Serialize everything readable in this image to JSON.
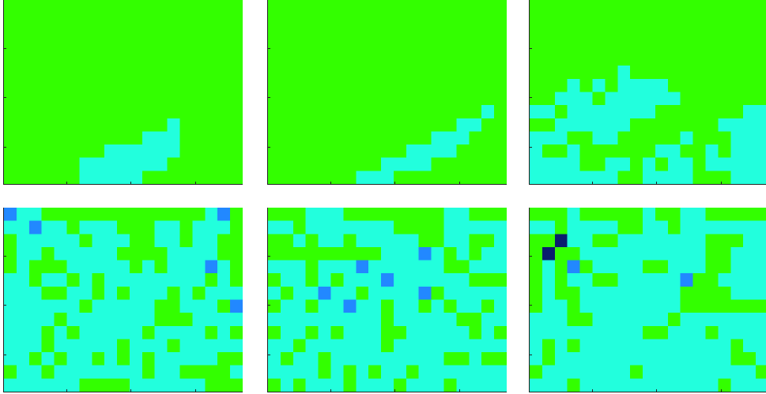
{
  "colors": {
    "0": "#33ff00",
    "1": "#22ffdd",
    "2": "#2288ff",
    "3": "#0a1e6e"
  },
  "grid": {
    "rows": 14,
    "cols": 19
  },
  "panels": [
    {
      "id": "panel-1",
      "cells": [
        "0000000000000000000",
        "0000000000000000000",
        "0000000000000000000",
        "0000000000000000000",
        "0000000000000000000",
        "0000000000000000000",
        "0000000000000000000",
        "0000000000000000000",
        "0000000000000000000",
        "0000000000000100000",
        "0000000000011100000",
        "0000000011111100000",
        "0000001111111000000",
        "0000001111100000000"
      ]
    },
    {
      "id": "panel-2",
      "cells": [
        "0000000000000000000",
        "0000000000000000000",
        "0000000000000000000",
        "0000000000000000000",
        "0000000000000000000",
        "0000000000000000000",
        "0000000000000000000",
        "0000000000000000000",
        "0000000000000000010",
        "0000000000000001100",
        "0000000000000111000",
        "0000000000011110000",
        "0000000001111000000",
        "0000000111000000000"
      ]
    },
    {
      "id": "panel-3",
      "cells": [
        "0000000000000000000",
        "0000000000000000000",
        "0000000000000000000",
        "0000000000000000000",
        "0000000000000000000",
        "0000000100000000000",
        "0001010111100000000",
        "0011101111110000000",
        "1101111111000000011",
        "0011111100000001111",
        "1110011000001000111",
        "1001000000110010111",
        "1111001101011011111",
        "1111111001111000111"
      ]
    },
    {
      "id": "panel-4",
      "cells": [
        "2110000000000000120",
        "1121101110001101110",
        "0111110111001101100",
        "0110111110000111100",
        "0100011111010111210",
        "1101101011111111010",
        "1110011010111010111",
        "1111110111110011102",
        "1111011111110001111",
        "1110101111101111010",
        "1110111110111011111",
        "1101011010101111100",
        "0110111111101100001",
        "1111110000111111000"
      ]
    },
    {
      "id": "panel-5",
      "cells": [
        "0001110000000011000",
        "1101111111000011111",
        "0010110111110011001",
        "0000000001112101011",
        "1110111211111100111",
        "0110101112111111000",
        "1011211011112011111",
        "0110112110110101101",
        "1111111110111110011",
        "0110101110011111010",
        "1101111110111111111",
        "1011011111111100100",
        "1111010101101111111",
        "0101110111011101111"
      ]
    },
    {
      "id": "panel-6",
      "cells": [
        "0001000001001100000",
        "1101111001101111111",
        "0031100111111100011",
        "0300111111111100111",
        "0102011110011100111",
        "0101100111112001111",
        "0100111111110000111",
        "0110111111110000000",
        "1110011111101111111",
        "1111111110011101111",
        "1010111111111111011",
        "1011111111111111001",
        "0111111101111111110",
        "1110111111111110111"
      ]
    }
  ]
}
